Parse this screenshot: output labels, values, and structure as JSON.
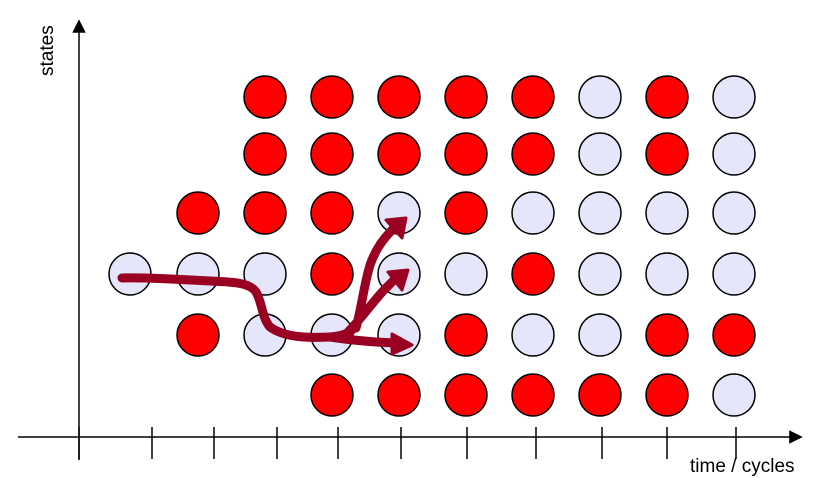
{
  "axes": {
    "y_label": "states",
    "x_label": "time / cycles"
  },
  "colors": {
    "red_state": "#ff0000",
    "empty_state": "#e6e6fa",
    "path": "#990022",
    "outline": "#000000"
  },
  "grid": {
    "columns": 10,
    "rows": 6,
    "cells": [
      [
        "none",
        "none",
        "red",
        "red",
        "red",
        "red",
        "red",
        "empty",
        "red",
        "empty"
      ],
      [
        "none",
        "none",
        "red",
        "red",
        "red",
        "red",
        "red",
        "empty",
        "red",
        "empty"
      ],
      [
        "none",
        "red",
        "red",
        "red",
        "empty",
        "red",
        "empty",
        "empty",
        "empty",
        "empty"
      ],
      [
        "empty",
        "empty",
        "empty",
        "red",
        "empty",
        "empty",
        "red",
        "empty",
        "empty",
        "empty"
      ],
      [
        "none",
        "red",
        "empty",
        "empty",
        "empty",
        "red",
        "empty",
        "empty",
        "red",
        "red"
      ],
      [
        "none",
        "none",
        "none",
        "red",
        "red",
        "red",
        "red",
        "red",
        "red",
        "empty"
      ]
    ]
  },
  "ticks": {
    "count": 11
  },
  "paths": {
    "branches": [
      "to-row-2",
      "to-row-3",
      "to-row-4"
    ]
  }
}
